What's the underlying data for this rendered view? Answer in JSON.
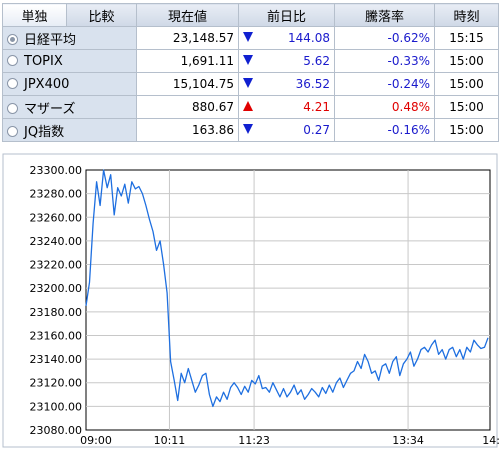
{
  "tabs": [
    {
      "label": "単独",
      "active": true
    },
    {
      "label": "比較",
      "active": false
    }
  ],
  "columns": [
    "現在値",
    "前日比",
    "騰落率",
    "時刻"
  ],
  "rows": [
    {
      "name": "日経平均",
      "selected": true,
      "price": "23,148.57",
      "direction": "down",
      "change": "144.08",
      "percent": "-0.62%",
      "time": "15:15"
    },
    {
      "name": "TOPIX",
      "selected": false,
      "price": "1,691.11",
      "direction": "down",
      "change": "5.62",
      "percent": "-0.33%",
      "time": "15:00"
    },
    {
      "name": "JPX400",
      "selected": false,
      "price": "15,104.75",
      "direction": "down",
      "change": "36.52",
      "percent": "-0.24%",
      "time": "15:00"
    },
    {
      "name": "マザーズ",
      "selected": false,
      "price": "880.67",
      "direction": "up",
      "change": "4.21",
      "percent": "0.48%",
      "time": "15:00"
    },
    {
      "name": "JQ指数",
      "selected": false,
      "price": "163.86",
      "direction": "down",
      "change": "0.27",
      "percent": "-0.16%",
      "time": "15:00"
    }
  ],
  "colors": {
    "up": "#e00000",
    "down": "#1020d0",
    "line": "#1e6fe0"
  },
  "chart_data": {
    "type": "line",
    "ylim": [
      23080,
      23300
    ],
    "y_ticks": [
      "23300.00",
      "23280.00",
      "23260.00",
      "23240.00",
      "23220.00",
      "23200.00",
      "23180.00",
      "23160.00",
      "23140.00",
      "23120.00",
      "23100.00",
      "23080.00"
    ],
    "x_ticks": [
      "09:00",
      "10:11",
      "11:23",
      "13:34",
      "14:"
    ],
    "grid": true,
    "x_minutes": [
      0,
      3,
      6,
      9,
      12,
      15,
      18,
      21,
      24,
      27,
      30,
      33,
      36,
      39,
      42,
      45,
      48,
      51,
      54,
      57,
      60,
      63,
      66,
      69,
      72,
      75,
      78,
      81,
      84,
      87,
      90,
      93,
      96,
      99,
      102,
      105,
      108,
      111,
      114,
      117,
      120,
      123,
      126,
      129,
      132,
      135,
      138,
      141,
      144,
      147,
      150,
      153,
      156,
      159,
      162,
      165,
      168,
      171,
      174,
      177,
      180,
      183,
      186,
      189,
      192,
      195,
      198,
      201,
      204,
      207,
      210,
      213,
      216,
      219,
      222,
      225,
      228,
      231,
      234,
      237,
      240,
      243,
      246,
      249,
      252,
      255,
      258,
      261,
      264,
      267,
      270,
      273,
      276,
      279,
      282,
      285,
      288,
      291,
      294,
      297,
      300,
      303,
      306,
      309,
      312,
      315,
      318,
      321,
      324,
      327,
      330,
      333,
      336,
      339,
      342
    ],
    "values": [
      23185,
      23205,
      23255,
      23290,
      23270,
      23300,
      23285,
      23296,
      23262,
      23285,
      23278,
      23288,
      23272,
      23290,
      23284,
      23286,
      23280,
      23270,
      23258,
      23248,
      23232,
      23240,
      23220,
      23196,
      23138,
      23122,
      23105,
      23128,
      23120,
      23132,
      23122,
      23112,
      23118,
      23126,
      23128,
      23110,
      23100,
      23108,
      23104,
      23112,
      23106,
      23116,
      23120,
      23116,
      23110,
      23117,
      23112,
      23122,
      23119,
      23126,
      23115,
      23116,
      23112,
      23120,
      23114,
      23108,
      23115,
      23108,
      23112,
      23118,
      23110,
      23114,
      23106,
      23110,
      23115,
      23112,
      23108,
      23116,
      23111,
      23118,
      23112,
      23120,
      23124,
      23116,
      23122,
      23128,
      23130,
      23138,
      23132,
      23144,
      23138,
      23128,
      23130,
      23122,
      23134,
      23136,
      23128,
      23138,
      23142,
      23126,
      23136,
      23140,
      23146,
      23134,
      23140,
      23148,
      23150,
      23146,
      23152,
      23156,
      23144,
      23148,
      23140,
      23148,
      23150,
      23142,
      23148,
      23140,
      23150,
      23146,
      23156,
      23152,
      23149,
      23150,
      23158
    ]
  }
}
